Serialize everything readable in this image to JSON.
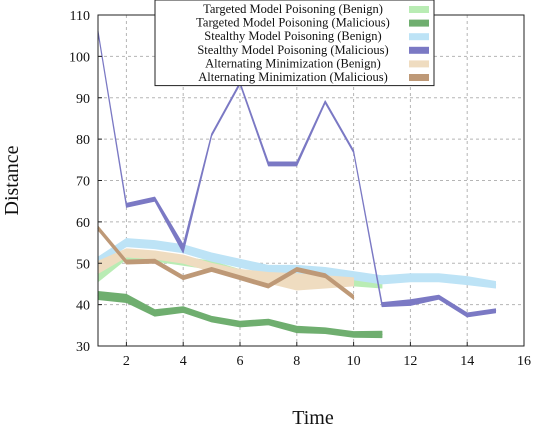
{
  "chart_data": {
    "type": "line",
    "title": "",
    "xlabel": "Time",
    "ylabel": "Distance",
    "xlim": [
      1,
      16
    ],
    "ylim": [
      30,
      110
    ],
    "xticks": [
      2,
      4,
      6,
      8,
      10,
      12,
      14,
      16
    ],
    "yticks": [
      30,
      40,
      50,
      60,
      70,
      80,
      90,
      100,
      110
    ],
    "grid": true,
    "legend_position": "top-center",
    "series": [
      {
        "name": "Targeted Model Poisoning (Benign)",
        "color": "#b9ecb4",
        "x": [
          1,
          2,
          3,
          4,
          5,
          6,
          7,
          8,
          9,
          10,
          11
        ],
        "y": [
          47.5,
          52,
          51.5,
          50.5,
          49.5,
          47.5,
          46.5,
          47,
          46.5,
          45.5,
          45
        ],
        "upper": [
          49.5,
          53,
          52.5,
          51.5,
          50.5,
          48.5,
          47.5,
          48,
          47.5,
          46.5,
          46
        ],
        "lower": [
          45.5,
          51,
          50.5,
          49.5,
          48.5,
          46.5,
          45.5,
          46,
          45.5,
          44.5,
          44
        ]
      },
      {
        "name": "Targeted Model Poisoning (Malicious)",
        "color": "#6fae6f",
        "x": [
          1,
          2,
          3,
          4,
          5,
          6,
          7,
          8,
          9,
          10,
          11
        ],
        "y": [
          42.2,
          41.5,
          38,
          38.8,
          36.5,
          35.3,
          35.8,
          34,
          33.7,
          32.8,
          32.8
        ],
        "upper": [
          43.2,
          42.5,
          38.8,
          39.5,
          37.2,
          36,
          36.5,
          34.8,
          34.4,
          33.5,
          33.6
        ],
        "lower": [
          41.2,
          40.5,
          37.2,
          38.1,
          35.8,
          34.6,
          35.1,
          33.2,
          33,
          32.1,
          32
        ]
      },
      {
        "name": "Stealthy Model Poisoning (Benign)",
        "color": "#bde3f6",
        "x": [
          1,
          2,
          3,
          4,
          5,
          6,
          7,
          8,
          9,
          10,
          11,
          12,
          13,
          14,
          15
        ],
        "y": [
          50.5,
          55,
          54.5,
          53.5,
          51.5,
          50,
          48.5,
          48.5,
          48,
          47,
          46,
          46.5,
          46.5,
          45.8,
          44.8
        ],
        "upper": [
          51.5,
          56,
          55.5,
          54.5,
          52.5,
          51,
          49.5,
          49.5,
          49,
          48,
          47,
          47.5,
          47.5,
          46.8,
          45.6
        ],
        "lower": [
          49.5,
          54,
          53.5,
          52.5,
          50.5,
          49,
          47.5,
          47.5,
          47,
          46,
          45,
          45.5,
          45.5,
          44.8,
          44
        ]
      },
      {
        "name": "Stealthy Model Poisoning (Malicious)",
        "color": "#7b79c4",
        "x": [
          1,
          2,
          3,
          4,
          5,
          6,
          7,
          8,
          9,
          10,
          11,
          12,
          13,
          14,
          15
        ],
        "y": [
          106,
          64,
          65.5,
          53.5,
          81,
          93.5,
          74,
          74,
          89,
          77,
          40,
          40.5,
          41.8,
          37.5,
          38.5
        ],
        "upper": [
          106.3,
          64.5,
          66,
          54.5,
          81.3,
          93.8,
          74.5,
          74.5,
          89.3,
          77.3,
          40.5,
          41.2,
          42.3,
          38,
          39
        ],
        "lower": [
          105.7,
          63.5,
          65,
          52.5,
          80.7,
          93.2,
          73.5,
          73.5,
          88.7,
          76.7,
          39.5,
          39.8,
          41.3,
          37,
          38
        ]
      },
      {
        "name": "Alternating Minimization (Benign)",
        "color": "#efdcc0",
        "x": [
          1,
          2,
          3,
          4,
          5,
          6,
          7,
          8,
          9,
          10
        ],
        "y": [
          49,
          52.5,
          52,
          51,
          49,
          47.5,
          46.5,
          45.5,
          45.5,
          45.5
        ],
        "upper": [
          50.5,
          53.5,
          53,
          52,
          50,
          48.5,
          47.8,
          47.5,
          47,
          46.5
        ],
        "lower": [
          47.5,
          51.5,
          51,
          50,
          48,
          46.5,
          45.2,
          43.5,
          44,
          44.5
        ]
      },
      {
        "name": "Alternating Minimization (Malicious)",
        "color": "#be9977",
        "x": [
          1,
          2,
          3,
          4,
          5,
          6,
          7,
          8,
          9,
          10
        ],
        "y": [
          58.5,
          50.3,
          50.5,
          46.5,
          48.5,
          46.5,
          44.5,
          48.5,
          47,
          41.8
        ],
        "upper": [
          59,
          50.8,
          51,
          47,
          49,
          47,
          45,
          49,
          47.5,
          42.3
        ],
        "lower": [
          58,
          49.8,
          50,
          46,
          48,
          46,
          44,
          48,
          46.5,
          41.3
        ]
      }
    ]
  }
}
